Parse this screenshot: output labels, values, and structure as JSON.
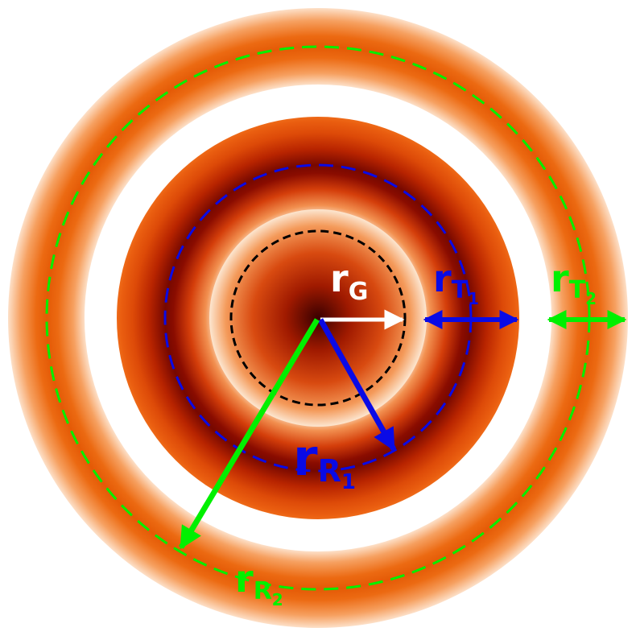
{
  "colors": {
    "ring_gradient": [
      "#5a0000",
      "#b82200",
      "#e0520a",
      "#f6a060",
      "#fde0c8"
    ],
    "gaussian_gradient": [
      "#3a0000",
      "#a01a00",
      "#d84a10",
      "#f49a5a",
      "#fce6d0"
    ],
    "background": "#ffffff",
    "gaussian_outline": "#000000",
    "ring1_accent": "#0a0ae6",
    "ring2_accent": "#00f000",
    "gaussian_arrow": "#ffffff"
  },
  "labels": {
    "r_G": {
      "main": "r",
      "sub": "G",
      "color": "#ffffff"
    },
    "r_T1": {
      "main": "r",
      "sub": "T",
      "subsub": "1",
      "color": "#0a0ae6"
    },
    "r_T2": {
      "main": "r",
      "sub": "T",
      "subsub": "2",
      "color": "#00f000"
    },
    "r_R1": {
      "main": "r",
      "sub": "R",
      "subsub": "1",
      "color": "#0a0ae6"
    },
    "r_R2": {
      "main": "r",
      "sub": "R",
      "subsub": "2",
      "color": "#00f000"
    }
  }
}
